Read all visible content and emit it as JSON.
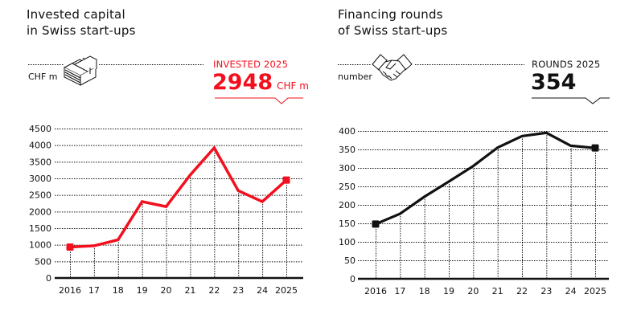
{
  "colors": {
    "invested": "#f2101e",
    "rounds": "#111111"
  },
  "chart_data": [
    {
      "type": "line",
      "title": "Invested capital in Swiss start-ups",
      "title_lines": [
        "Invested capital",
        "in Swiss start-ups"
      ],
      "ylabel": "CHF m",
      "icon": "money-stack-icon",
      "kpi_label": "INVESTED 2025",
      "kpi_value": "2948",
      "kpi_unit": "CHF m",
      "categories": [
        "2016",
        "17",
        "18",
        "19",
        "20",
        "21",
        "22",
        "23",
        "24",
        "2025"
      ],
      "values": [
        930,
        970,
        1150,
        2300,
        2150,
        3100,
        3920,
        2630,
        2300,
        2948
      ],
      "ylim": [
        0,
        4500
      ],
      "yticks": [
        "0",
        "500",
        "1000",
        "1500",
        "2000",
        "2500",
        "3000",
        "3500",
        "4000",
        "4500"
      ],
      "grid": true
    },
    {
      "type": "line",
      "title": "Financing rounds of Swiss start-ups",
      "title_lines": [
        "Financing rounds",
        "of Swiss start-ups"
      ],
      "ylabel": "number",
      "icon": "handshake-icon",
      "kpi_label": "ROUNDS 2025",
      "kpi_value": "354",
      "categories": [
        "2016",
        "17",
        "18",
        "19",
        "20",
        "21",
        "22",
        "23",
        "24",
        "2025"
      ],
      "values": [
        148,
        176,
        222,
        263,
        305,
        355,
        386,
        395,
        360,
        354
      ],
      "ylim": [
        0,
        400
      ],
      "yticks": [
        "0",
        "50",
        "100",
        "150",
        "200",
        "250",
        "300",
        "350",
        "400"
      ],
      "grid": true
    }
  ]
}
